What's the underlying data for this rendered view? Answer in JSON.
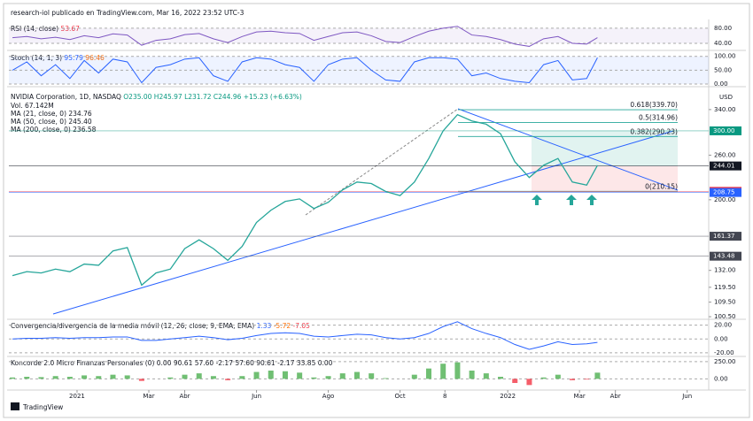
{
  "header": "research-iol publicado en TradingView.com, Mar 16, 2022 23:52 UTC-3",
  "footer": "TradingView",
  "x": [
    -1.8,
    -1.4,
    -1,
    -0.6,
    -0.2,
    0.2,
    0.6,
    1,
    1.4,
    1.8,
    2.2,
    2.6,
    3,
    3.4,
    3.8,
    4.2,
    4.6,
    5,
    5.4,
    5.8,
    6.2,
    6.6,
    7,
    7.4,
    7.8,
    8.2,
    8.6,
    9,
    9.4,
    9.8,
    10.2,
    10.6,
    11,
    11.4,
    11.8,
    12.2,
    12.6,
    13,
    13.4,
    13.8,
    14.2,
    14.5
  ],
  "xlim": [
    -1.9,
    17.6
  ],
  "xticks": [
    {
      "value": 0,
      "label": "2021"
    },
    {
      "value": 2,
      "label": "Mar"
    },
    {
      "value": 3,
      "label": "Abr"
    },
    {
      "value": 5,
      "label": "Jun"
    },
    {
      "value": 7,
      "label": "Ago"
    },
    {
      "value": 9,
      "label": "Oct"
    },
    {
      "value": 10.25,
      "label": "8"
    },
    {
      "value": 12,
      "label": "2022"
    },
    {
      "value": 14,
      "label": "Mar"
    },
    {
      "value": 15,
      "label": "Abr"
    },
    {
      "value": 17,
      "label": "Jun"
    }
  ],
  "rsi": {
    "type": "line",
    "title": "RSI (14, close)",
    "last": 53.67,
    "color": "#7e57c2",
    "ylim": [
      26,
      96
    ],
    "yticks": [
      {
        "value": 80,
        "label": "80.00"
      },
      {
        "value": 40,
        "label": "40.00"
      }
    ],
    "values": [
      55,
      58,
      52,
      56,
      50,
      60,
      55,
      65,
      62,
      35,
      48,
      52,
      63,
      66,
      52,
      42,
      58,
      70,
      72,
      68,
      66,
      48,
      58,
      68,
      70,
      60,
      45,
      42,
      58,
      72,
      80,
      85,
      62,
      58,
      50,
      38,
      32,
      52,
      58,
      40,
      38,
      55
    ]
  },
  "stoch": {
    "type": "line",
    "title": "Stoch (14, 1, 3)",
    "last": [
      95.79,
      96.46
    ],
    "color": "#2962ff",
    "ylim": [
      -3,
      115
    ],
    "yticks": [
      {
        "value": 100,
        "label": "100.00"
      },
      {
        "value": 50,
        "label": "50.00"
      },
      {
        "value": 0,
        "label": "0.00"
      }
    ],
    "values": [
      50,
      80,
      30,
      70,
      20,
      85,
      40,
      90,
      80,
      5,
      60,
      70,
      90,
      95,
      30,
      10,
      80,
      95,
      90,
      70,
      60,
      10,
      70,
      90,
      95,
      50,
      15,
      10,
      80,
      95,
      95,
      90,
      30,
      40,
      20,
      10,
      5,
      70,
      85,
      15,
      20,
      95
    ]
  },
  "price": {
    "type": "line",
    "title": "NVIDIA Corporation, 1D, NASDAQ",
    "ohlc": "O235.00 H245.97 L231.72 C244.96 +15.23 (+6.63%)",
    "unit": "USD",
    "volume": "Vol. 67.142M",
    "ma": [
      "MA (21, close, 0) 234.76",
      "MA (50, close, 0) 245.40",
      "MA (200, close, 0) 236.58"
    ],
    "log_scale": true,
    "color": "#26a69a",
    "ylim": [
      99.5,
      385
    ],
    "yticks": [
      {
        "value": 340,
        "label": "340.00"
      },
      {
        "value": 260,
        "label": "260.00"
      },
      {
        "value": 200,
        "label": "200.00"
      },
      {
        "value": 132,
        "label": "132.00"
      },
      {
        "value": 119.5,
        "label": "119.50"
      },
      {
        "value": 109.5,
        "label": "109.50"
      },
      {
        "value": 100.5,
        "label": "100.50"
      }
    ],
    "levels": [
      {
        "value": 300,
        "label": "300.00"
      },
      244.01,
      210.15,
      208.75,
      161.37,
      143.48
    ],
    "level_colors": [
      "#089981",
      "#131722",
      "#f23645",
      "#2962ff",
      "#434651",
      "#434651"
    ],
    "fib": [
      {
        "value": 339.7,
        "label": "0.618(339.70)"
      },
      {
        "value": 314.96,
        "label": "0.5(314.96)"
      },
      {
        "value": 290.23,
        "label": "0.382(290.23)"
      },
      {
        "value": 210.15,
        "label": "0(210.15)"
      }
    ],
    "values": [
      128,
      131,
      130,
      133,
      131,
      137,
      136,
      148,
      151,
      121,
      130,
      133,
      150,
      158,
      150,
      140,
      152,
      175,
      188,
      198,
      201,
      190,
      197,
      212,
      222,
      220,
      210,
      205,
      222,
      255,
      300,
      330,
      318,
      312,
      295,
      250,
      228,
      245,
      255,
      222,
      218,
      244.96
    ]
  },
  "macd": {
    "type": "line",
    "title": "Convergencia/divergencia de la media móvil (12, 26, close, 9, EMA, EMA)",
    "last": [
      1.33,
      -5.72,
      -7.05
    ],
    "color": "#2962ff",
    "ylim": [
      -24,
      26
    ],
    "yticks": [
      {
        "value": 20,
        "label": "20.00"
      },
      {
        "value": 0,
        "label": "0.00"
      },
      {
        "value": -20,
        "label": "-20.00"
      }
    ],
    "values": [
      0,
      1,
      1,
      2,
      1,
      2,
      2,
      3,
      3,
      -2,
      -2,
      0,
      2,
      4,
      2,
      -1,
      1,
      5,
      8,
      9,
      8,
      4,
      3,
      5,
      7,
      6,
      2,
      0,
      2,
      8,
      18,
      25,
      15,
      8,
      2,
      -8,
      -15,
      -10,
      -4,
      -8,
      -7,
      -5
    ]
  },
  "koncorde": {
    "type": "bar",
    "title": "Koncorde 2.0 Micro Finanzas Personales (0)",
    "last": "0.00 90.61 57.60 -2.17 57.60 90.61 -2.17 33.85 0.00",
    "color": "#4caf50",
    "ylim": [
      -150,
      300
    ],
    "yticks": [
      {
        "value": 250,
        "label": "250.00"
      },
      {
        "value": 0,
        "label": "0.00"
      }
    ],
    "values": [
      20,
      30,
      25,
      40,
      30,
      50,
      40,
      60,
      50,
      -30,
      0,
      20,
      60,
      80,
      40,
      -20,
      40,
      100,
      120,
      110,
      90,
      20,
      40,
      80,
      100,
      80,
      10,
      0,
      60,
      150,
      220,
      240,
      120,
      80,
      30,
      -60,
      -90,
      20,
      60,
      -20,
      -10,
      90
    ]
  }
}
